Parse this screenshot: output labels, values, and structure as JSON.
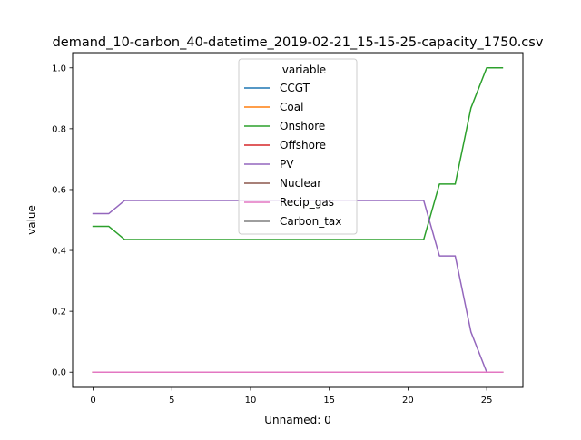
{
  "chart_data": {
    "type": "line",
    "title": "demand_10-carbon_40-datetime_2019-02-21_15-15-25-capacity_1750.csv",
    "xlabel": "Unnamed: 0",
    "ylabel": "value",
    "xlim": [
      -1.3,
      27.3
    ],
    "ylim": [
      -0.05,
      1.05
    ],
    "xticks": [
      0,
      5,
      10,
      15,
      20,
      25
    ],
    "yticks": [
      0.0,
      0.2,
      0.4,
      0.6,
      0.8,
      1.0
    ],
    "xtick_labels": [
      "0",
      "5",
      "10",
      "15",
      "20",
      "25"
    ],
    "ytick_labels": [
      "0.0",
      "0.2",
      "0.4",
      "0.6",
      "0.8",
      "1.0"
    ],
    "grid": false,
    "legend": {
      "title": "variable",
      "position": "upper-center"
    },
    "x": [
      0,
      1,
      2,
      3,
      4,
      5,
      6,
      7,
      8,
      9,
      10,
      11,
      12,
      13,
      14,
      15,
      16,
      17,
      18,
      19,
      20,
      21,
      22,
      23,
      24,
      25,
      26
    ],
    "series": [
      {
        "name": "CCGT",
        "color": "#1f77b4",
        "values": [
          0,
          0,
          0,
          0,
          0,
          0,
          0,
          0,
          0,
          0,
          0,
          0,
          0,
          0,
          0,
          0,
          0,
          0,
          0,
          0,
          0,
          0,
          0,
          0,
          0,
          0,
          0
        ]
      },
      {
        "name": "Coal",
        "color": "#ff7f0e",
        "values": [
          0,
          0,
          0,
          0,
          0,
          0,
          0,
          0,
          0,
          0,
          0,
          0,
          0,
          0,
          0,
          0,
          0,
          0,
          0,
          0,
          0,
          0,
          0,
          0,
          0,
          0,
          0
        ]
      },
      {
        "name": "Onshore",
        "color": "#2ca02c",
        "values": [
          0.479,
          0.479,
          0.436,
          0.436,
          0.436,
          0.436,
          0.436,
          0.436,
          0.436,
          0.436,
          0.436,
          0.436,
          0.436,
          0.436,
          0.436,
          0.436,
          0.436,
          0.436,
          0.436,
          0.436,
          0.436,
          0.436,
          0.618,
          0.618,
          0.868,
          1.0,
          1.0
        ]
      },
      {
        "name": "Offshore",
        "color": "#d62728",
        "values": [
          0,
          0,
          0,
          0,
          0,
          0,
          0,
          0,
          0,
          0,
          0,
          0,
          0,
          0,
          0,
          0,
          0,
          0,
          0,
          0,
          0,
          0,
          0,
          0,
          0,
          0,
          0
        ]
      },
      {
        "name": "PV",
        "color": "#9467bd",
        "values": [
          0.521,
          0.521,
          0.564,
          0.564,
          0.564,
          0.564,
          0.564,
          0.564,
          0.564,
          0.564,
          0.564,
          0.564,
          0.564,
          0.564,
          0.564,
          0.564,
          0.564,
          0.564,
          0.564,
          0.564,
          0.564,
          0.564,
          0.382,
          0.382,
          0.132,
          0.0,
          0.0
        ]
      },
      {
        "name": "Nuclear",
        "color": "#8c564b",
        "values": [
          0,
          0,
          0,
          0,
          0,
          0,
          0,
          0,
          0,
          0,
          0,
          0,
          0,
          0,
          0,
          0,
          0,
          0,
          0,
          0,
          0,
          0,
          0,
          0,
          0,
          0,
          0
        ]
      },
      {
        "name": "Recip_gas",
        "color": "#e377c2",
        "values": [
          0,
          0,
          0,
          0,
          0,
          0,
          0,
          0,
          0,
          0,
          0,
          0,
          0,
          0,
          0,
          0,
          0,
          0,
          0,
          0,
          0,
          0,
          0,
          0,
          0,
          0,
          0
        ]
      },
      {
        "name": "Carbon_tax",
        "color": "#7f7f7f",
        "values": null
      }
    ]
  }
}
